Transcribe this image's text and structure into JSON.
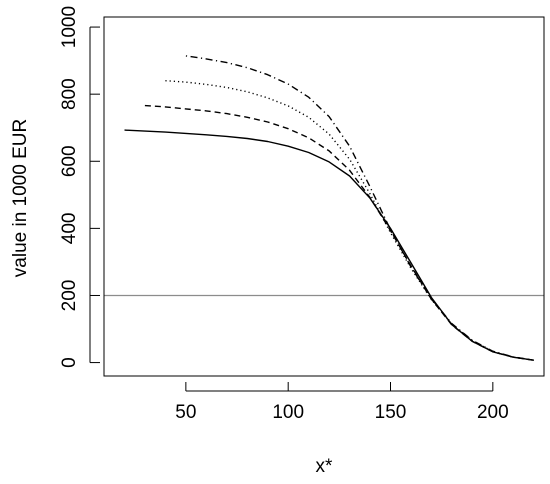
{
  "chart_data": {
    "type": "line",
    "title": "",
    "xlabel": "x*",
    "ylabel": "value in 1000 EUR",
    "xlim": [
      10,
      225
    ],
    "ylim": [
      -40,
      1030
    ],
    "xticks": [
      50,
      100,
      150,
      200
    ],
    "xtick_labels": [
      "50",
      "100",
      "150",
      "200"
    ],
    "yticks": [
      0,
      200,
      400,
      600,
      800,
      1000
    ],
    "ytick_labels": [
      "0",
      "200",
      "400",
      "600",
      "800",
      "1000"
    ],
    "grid": false,
    "legend": "none",
    "reference_line": {
      "y": 200,
      "color": "#8c8c8c"
    },
    "series": [
      {
        "line_style": "solid",
        "color": "#000000",
        "x": [
          20,
          30,
          40,
          50,
          60,
          70,
          80,
          90,
          100,
          110,
          120,
          130,
          140,
          150,
          160,
          170,
          180,
          190,
          200,
          210,
          220
        ],
        "y": [
          693,
          690,
          687,
          683,
          679,
          674,
          668,
          659,
          645,
          626,
          598,
          556,
          490,
          400,
          297,
          194,
          113,
          63,
          32,
          16,
          7
        ]
      },
      {
        "line_style": "dashed",
        "color": "#000000",
        "x": [
          30,
          40,
          50,
          60,
          70,
          80,
          90,
          100,
          110,
          120,
          130,
          140,
          150,
          160,
          170,
          180,
          190,
          200,
          210,
          220
        ],
        "y": [
          766,
          762,
          756,
          750,
          742,
          731,
          717,
          697,
          670,
          631,
          573,
          492,
          393,
          288,
          189,
          112,
          63,
          32,
          16,
          7
        ]
      },
      {
        "line_style": "dotted",
        "color": "#000000",
        "x": [
          40,
          50,
          60,
          70,
          80,
          90,
          100,
          110,
          120,
          130,
          140,
          150,
          160,
          170,
          180,
          190,
          200,
          210,
          220
        ],
        "y": [
          840,
          836,
          829,
          820,
          807,
          789,
          765,
          731,
          681,
          606,
          503,
          387,
          281,
          188,
          114,
          65,
          33,
          16,
          7
        ]
      },
      {
        "line_style": "dotdash",
        "color": "#000000",
        "x": [
          50,
          60,
          70,
          80,
          90,
          100,
          110,
          120,
          130,
          140,
          150,
          160,
          170,
          180,
          190,
          200,
          210,
          220
        ],
        "y": [
          914,
          905,
          894,
          879,
          858,
          830,
          791,
          733,
          645,
          524,
          396,
          285,
          190,
          116,
          66,
          34,
          17,
          7
        ]
      }
    ]
  }
}
